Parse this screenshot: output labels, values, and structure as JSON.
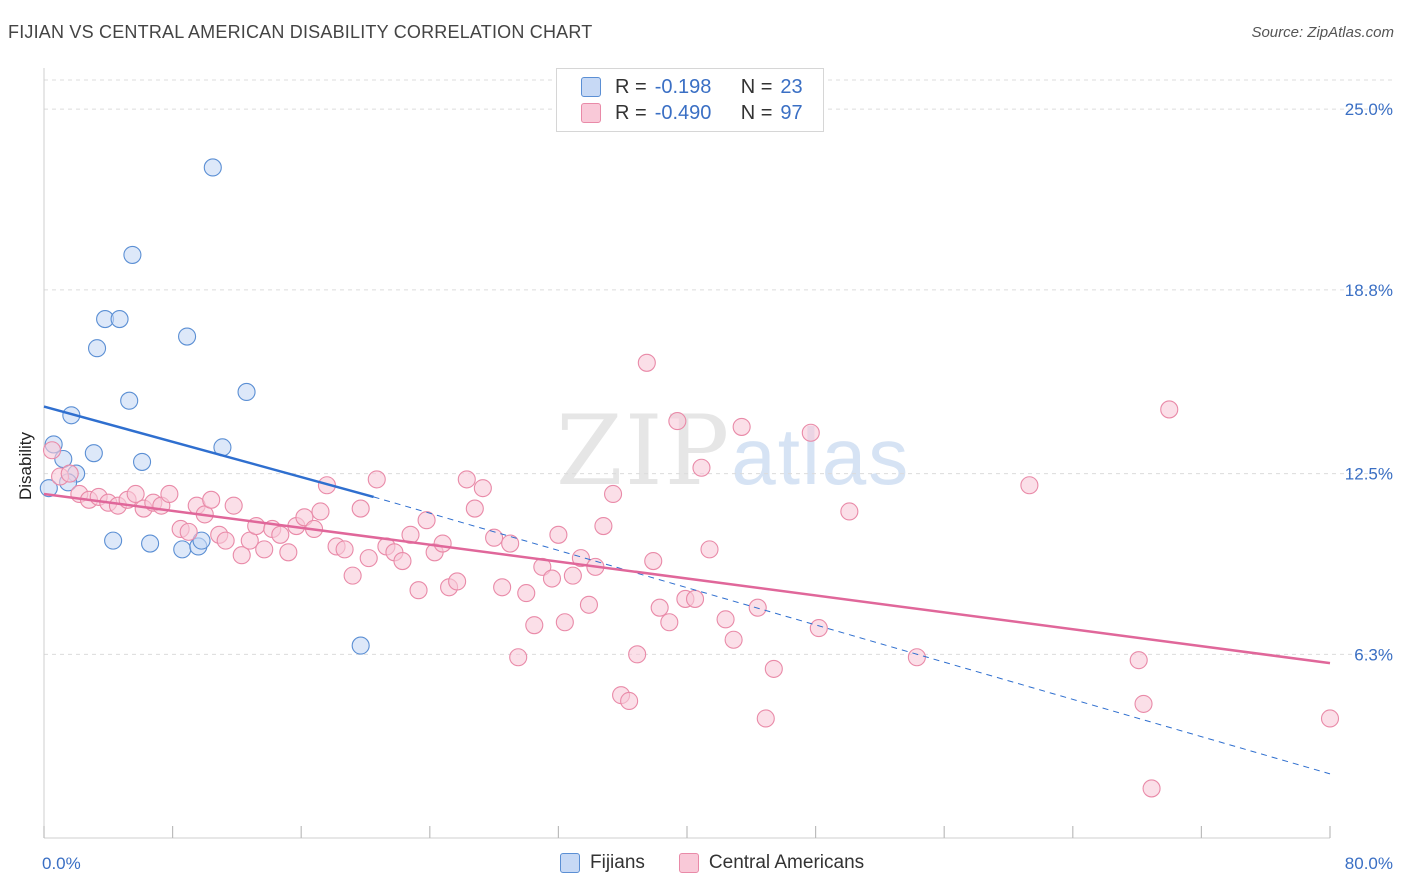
{
  "title": "FIJIAN VS CENTRAL AMERICAN DISABILITY CORRELATION CHART",
  "source": "Source: ZipAtlas.com",
  "watermark": {
    "zip": "ZIP",
    "atlas": "atlas"
  },
  "colors": {
    "blue_fill": "#c7d9f5",
    "blue_stroke": "#5b8fd4",
    "blue_line": "#2f6fcf",
    "pink_fill": "#f9c9d8",
    "pink_stroke": "#e98aa8",
    "pink_line": "#e0679a",
    "axis_text": "#3a6fc4"
  },
  "legend": {
    "rows": [
      {
        "r_label": "R =",
        "r_value": "-0.198",
        "n_label": "N =",
        "n_value": "23"
      },
      {
        "r_label": "R =",
        "r_value": "-0.490",
        "n_label": "N =",
        "n_value": "97"
      }
    ]
  },
  "bottom_legend": {
    "fijians": "Fijians",
    "central_americans": "Central Americans"
  },
  "chart_data": {
    "type": "scatter",
    "title": "FIJIAN VS CENTRAL AMERICAN DISABILITY CORRELATION CHART",
    "xlabel": "",
    "ylabel": "Disability",
    "xlim": [
      0,
      80
    ],
    "ylim": [
      0,
      26
    ],
    "x_tick_labels": [
      "0.0%",
      "80.0%"
    ],
    "y_ticks": [
      6.3,
      12.5,
      18.8,
      25.0
    ],
    "y_tick_labels": [
      "6.3%",
      "12.5%",
      "18.8%",
      "25.0%"
    ],
    "grid": true,
    "series": [
      {
        "name": "Fijians",
        "color": "#5b8fd4",
        "points": [
          [
            10.5,
            23.0
          ],
          [
            5.5,
            20.0
          ],
          [
            3.8,
            17.8
          ],
          [
            4.7,
            17.8
          ],
          [
            8.9,
            17.2
          ],
          [
            3.3,
            16.8
          ],
          [
            5.3,
            15.0
          ],
          [
            12.6,
            15.3
          ],
          [
            1.7,
            14.5
          ],
          [
            0.6,
            13.5
          ],
          [
            11.1,
            13.4
          ],
          [
            3.1,
            13.2
          ],
          [
            1.2,
            13.0
          ],
          [
            6.1,
            12.9
          ],
          [
            2.0,
            12.5
          ],
          [
            0.3,
            12.0
          ],
          [
            4.3,
            10.2
          ],
          [
            6.6,
            10.1
          ],
          [
            8.6,
            9.9
          ],
          [
            9.6,
            10.0
          ],
          [
            9.8,
            10.2
          ],
          [
            19.7,
            6.6
          ],
          [
            1.5,
            12.2
          ]
        ],
        "trend": {
          "x1": 0,
          "y1": 14.8,
          "x2": 20.5,
          "y2": 11.7,
          "dash_to_x": 80,
          "dash_to_y": 2.2
        }
      },
      {
        "name": "Central Americans",
        "color": "#e98aa8",
        "points": [
          [
            0.5,
            13.3
          ],
          [
            1.0,
            12.4
          ],
          [
            1.6,
            12.5
          ],
          [
            2.2,
            11.8
          ],
          [
            2.8,
            11.6
          ],
          [
            3.4,
            11.7
          ],
          [
            4.0,
            11.5
          ],
          [
            4.6,
            11.4
          ],
          [
            5.2,
            11.6
          ],
          [
            5.7,
            11.8
          ],
          [
            6.2,
            11.3
          ],
          [
            6.8,
            11.5
          ],
          [
            7.3,
            11.4
          ],
          [
            7.8,
            11.8
          ],
          [
            8.5,
            10.6
          ],
          [
            9.0,
            10.5
          ],
          [
            9.5,
            11.4
          ],
          [
            10.0,
            11.1
          ],
          [
            10.4,
            11.6
          ],
          [
            10.9,
            10.4
          ],
          [
            11.3,
            10.2
          ],
          [
            11.8,
            11.4
          ],
          [
            12.3,
            9.7
          ],
          [
            12.8,
            10.2
          ],
          [
            13.2,
            10.7
          ],
          [
            13.7,
            9.9
          ],
          [
            14.2,
            10.6
          ],
          [
            14.7,
            10.4
          ],
          [
            15.2,
            9.8
          ],
          [
            15.7,
            10.7
          ],
          [
            16.2,
            11.0
          ],
          [
            16.8,
            10.6
          ],
          [
            17.2,
            11.2
          ],
          [
            17.6,
            12.1
          ],
          [
            18.2,
            10.0
          ],
          [
            18.7,
            9.9
          ],
          [
            19.2,
            9.0
          ],
          [
            19.7,
            11.3
          ],
          [
            20.2,
            9.6
          ],
          [
            20.7,
            12.3
          ],
          [
            21.3,
            10.0
          ],
          [
            21.8,
            9.8
          ],
          [
            22.3,
            9.5
          ],
          [
            22.8,
            10.4
          ],
          [
            23.3,
            8.5
          ],
          [
            23.8,
            10.9
          ],
          [
            24.3,
            9.8
          ],
          [
            24.8,
            10.1
          ],
          [
            25.2,
            8.6
          ],
          [
            25.7,
            8.8
          ],
          [
            26.3,
            12.3
          ],
          [
            26.8,
            11.3
          ],
          [
            27.3,
            12.0
          ],
          [
            28.0,
            10.3
          ],
          [
            28.5,
            8.6
          ],
          [
            29.0,
            10.1
          ],
          [
            29.5,
            6.2
          ],
          [
            30.0,
            8.4
          ],
          [
            30.5,
            7.3
          ],
          [
            31.0,
            9.3
          ],
          [
            31.6,
            8.9
          ],
          [
            32.0,
            10.4
          ],
          [
            32.4,
            7.4
          ],
          [
            32.9,
            9.0
          ],
          [
            33.4,
            9.6
          ],
          [
            33.9,
            8.0
          ],
          [
            34.3,
            9.3
          ],
          [
            34.8,
            10.7
          ],
          [
            35.4,
            11.8
          ],
          [
            35.9,
            4.9
          ],
          [
            36.4,
            4.7
          ],
          [
            36.9,
            6.3
          ],
          [
            37.5,
            16.3
          ],
          [
            37.9,
            9.5
          ],
          [
            38.3,
            7.9
          ],
          [
            38.9,
            7.4
          ],
          [
            39.4,
            14.3
          ],
          [
            39.9,
            8.2
          ],
          [
            40.5,
            8.2
          ],
          [
            40.9,
            12.7
          ],
          [
            41.4,
            9.9
          ],
          [
            42.4,
            7.5
          ],
          [
            42.9,
            6.8
          ],
          [
            43.4,
            14.1
          ],
          [
            44.4,
            7.9
          ],
          [
            44.9,
            4.1
          ],
          [
            45.4,
            5.8
          ],
          [
            47.7,
            13.9
          ],
          [
            48.2,
            7.2
          ],
          [
            50.1,
            11.2
          ],
          [
            54.3,
            6.2
          ],
          [
            61.3,
            12.1
          ],
          [
            68.1,
            6.1
          ],
          [
            68.4,
            4.6
          ],
          [
            68.9,
            1.7
          ],
          [
            70.0,
            14.7
          ],
          [
            80.0,
            4.1
          ]
        ],
        "trend": {
          "x1": 0,
          "y1": 11.8,
          "x2": 80,
          "y2": 6.0
        }
      }
    ]
  }
}
